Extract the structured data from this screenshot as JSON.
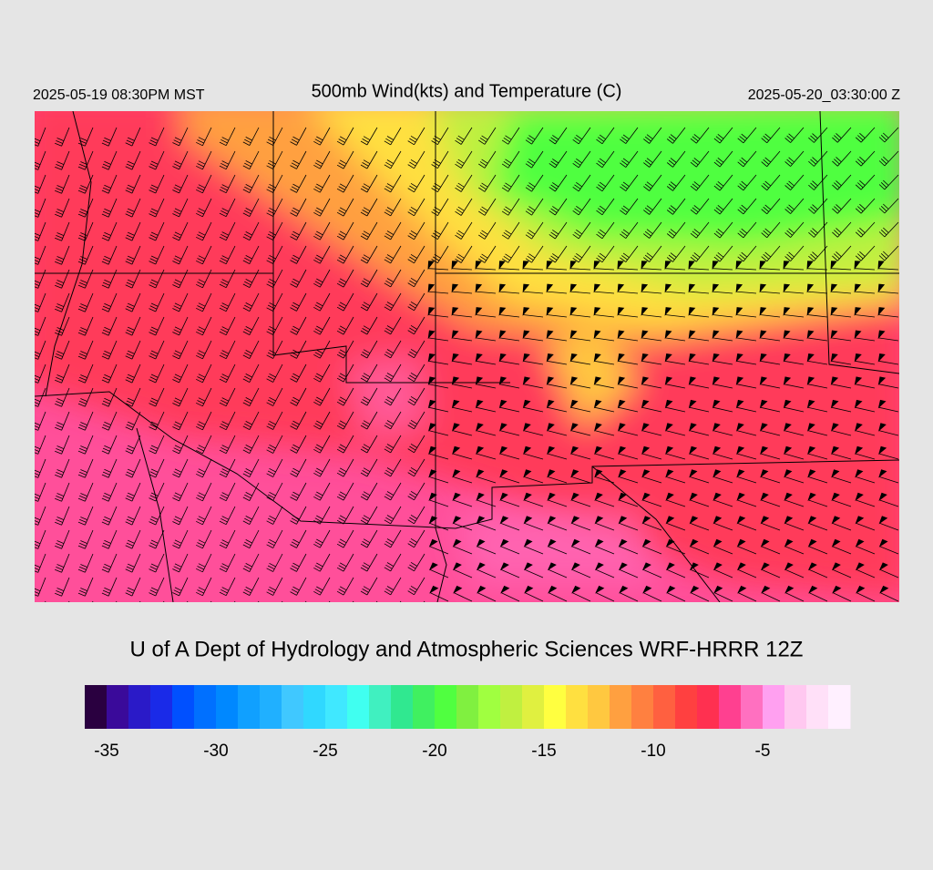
{
  "header": {
    "left": "2025-05-19 08:30PM MST",
    "title": "500mb Wind(kts) and Temperature (C)",
    "right": "2025-05-20_03:30:00 Z"
  },
  "footer": "U of A Dept of Hydrology and Atmospheric Sciences WRF-HRRR 12Z",
  "colorbar": {
    "range": [
      -36,
      -1
    ],
    "colors": [
      "#2a0040",
      "#3a0a9a",
      "#2a1ac8",
      "#1a2ae8",
      "#0050ff",
      "#0070ff",
      "#0088ff",
      "#10a0ff",
      "#20b0ff",
      "#40c8ff",
      "#30d8ff",
      "#40e8ff",
      "#40fff0",
      "#40f0c0",
      "#30e890",
      "#40f060",
      "#50ff40",
      "#80f040",
      "#a0ff40",
      "#c0f040",
      "#e0f040",
      "#ffff40",
      "#ffe040",
      "#ffc840",
      "#ffa040",
      "#ff8040",
      "#ff6040",
      "#ff4040",
      "#ff3050",
      "#ff4090",
      "#ff70c0",
      "#ffa0f0",
      "#ffc8f0",
      "#ffe0f8",
      "#fff0ff"
    ],
    "ticks": [
      -35,
      -30,
      -25,
      -20,
      -15,
      -10,
      -5
    ]
  }
}
